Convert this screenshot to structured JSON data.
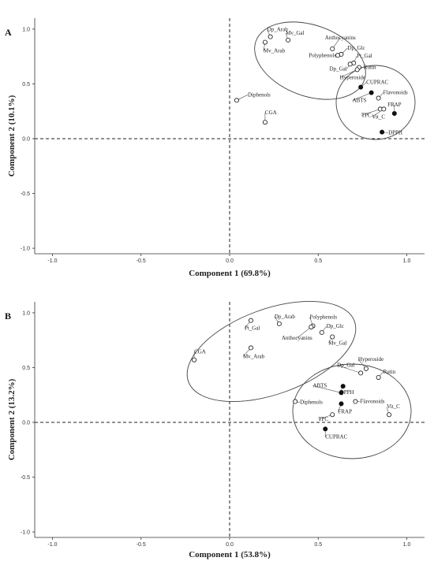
{
  "chart_data": [
    {
      "type": "scatter",
      "panel_label": "A",
      "xlabel": "Component 1 (69.8%)",
      "ylabel": "Component 2 (10.1%)",
      "xlim": [
        -1.1,
        1.1
      ],
      "ylim": [
        -1.05,
        1.1
      ],
      "xticks": [
        "-1.0",
        "-0.5",
        "0.0",
        "0.5",
        "1.0"
      ],
      "yticks": [
        "1.0",
        "0.5",
        "0.0",
        "-0.5",
        "-1.0"
      ],
      "grid": false,
      "points": [
        {
          "label": "Dp_Arab",
          "x": 0.23,
          "y": 0.93,
          "filled": false
        },
        {
          "label": "Mv_Gal",
          "x": 0.33,
          "y": 0.9,
          "filled": false
        },
        {
          "label": "Mv_Arab",
          "x": 0.2,
          "y": 0.88,
          "filled": false
        },
        {
          "label": "Anthocyanins",
          "x": 0.58,
          "y": 0.82,
          "filled": false
        },
        {
          "label": "Dp_Glc",
          "x": 0.63,
          "y": 0.77,
          "filled": false
        },
        {
          "label": "Polyphenols",
          "x": 0.61,
          "y": 0.76,
          "filled": false
        },
        {
          "label": "Pt_Gal",
          "x": 0.7,
          "y": 0.69,
          "filled": false
        },
        {
          "label": "Dp_Gal",
          "x": 0.68,
          "y": 0.68,
          "filled": false
        },
        {
          "label": "Rutin",
          "x": 0.73,
          "y": 0.65,
          "filled": false
        },
        {
          "label": "Hyperoside",
          "x": 0.72,
          "y": 0.63,
          "filled": false
        },
        {
          "label": "CUPRAC",
          "x": 0.74,
          "y": 0.47,
          "filled": true
        },
        {
          "label": "ABTS",
          "x": 0.8,
          "y": 0.42,
          "filled": true
        },
        {
          "label": "Flavonoids",
          "x": 0.84,
          "y": 0.37,
          "filled": false
        },
        {
          "label": "FRAP",
          "x": 0.93,
          "y": 0.23,
          "filled": true
        },
        {
          "label": "TPC",
          "x": 0.85,
          "y": 0.27,
          "filled": false
        },
        {
          "label": "Vit_C",
          "x": 0.87,
          "y": 0.27,
          "filled": false
        },
        {
          "label": "DPPH",
          "x": 0.86,
          "y": 0.06,
          "filled": true
        },
        {
          "label": "Diphenols",
          "x": 0.04,
          "y": 0.35,
          "filled": false
        },
        {
          "label": "CGA",
          "x": 0.2,
          "y": 0.15,
          "filled": false
        }
      ]
    },
    {
      "type": "scatter",
      "panel_label": "B",
      "xlabel": "Component 1 (53.8%)",
      "ylabel": "Component 2 (13.2%)",
      "xlim": [
        -1.1,
        1.1
      ],
      "ylim": [
        -1.05,
        1.1
      ],
      "xticks": [
        "-1.0",
        "-0.5",
        "0.0",
        "0.5",
        "1.0"
      ],
      "yticks": [
        "1.0",
        "0.5",
        "0.0",
        "-0.5",
        "-1.0"
      ],
      "grid": false,
      "points": [
        {
          "label": "Pt_Gal",
          "x": 0.12,
          "y": 0.93,
          "filled": false
        },
        {
          "label": "Dp_Arab",
          "x": 0.28,
          "y": 0.9,
          "filled": false
        },
        {
          "label": "Polyphenols",
          "x": 0.47,
          "y": 0.88,
          "filled": false
        },
        {
          "label": "Anthocyanins",
          "x": 0.46,
          "y": 0.87,
          "filled": false
        },
        {
          "label": "Dp_Glc",
          "x": 0.52,
          "y": 0.82,
          "filled": false
        },
        {
          "label": "Mv_Gal",
          "x": 0.58,
          "y": 0.78,
          "filled": false
        },
        {
          "label": "Mv_Arab",
          "x": 0.12,
          "y": 0.68,
          "filled": false
        },
        {
          "label": "CGA",
          "x": -0.2,
          "y": 0.57,
          "filled": false
        },
        {
          "label": "Hyperoside",
          "x": 0.77,
          "y": 0.49,
          "filled": false
        },
        {
          "label": "Rutin",
          "x": 0.84,
          "y": 0.41,
          "filled": false
        },
        {
          "label": "Dp_Gal",
          "x": 0.74,
          "y": 0.45,
          "filled": false
        },
        {
          "label": "DPPH",
          "x": 0.64,
          "y": 0.33,
          "filled": true
        },
        {
          "label": "ABTS",
          "x": 0.63,
          "y": 0.27,
          "filled": true
        },
        {
          "label": "Diphenols",
          "x": 0.37,
          "y": 0.19,
          "filled": false
        },
        {
          "label": "Flavonoids",
          "x": 0.71,
          "y": 0.19,
          "filled": false
        },
        {
          "label": "FRAP",
          "x": 0.63,
          "y": 0.17,
          "filled": true
        },
        {
          "label": "TPC",
          "x": 0.58,
          "y": 0.07,
          "filled": false
        },
        {
          "label": "Vit_C",
          "x": 0.9,
          "y": 0.07,
          "filled": false
        },
        {
          "label": "CUPRAC",
          "x": 0.54,
          "y": -0.06,
          "filled": true
        }
      ]
    }
  ]
}
